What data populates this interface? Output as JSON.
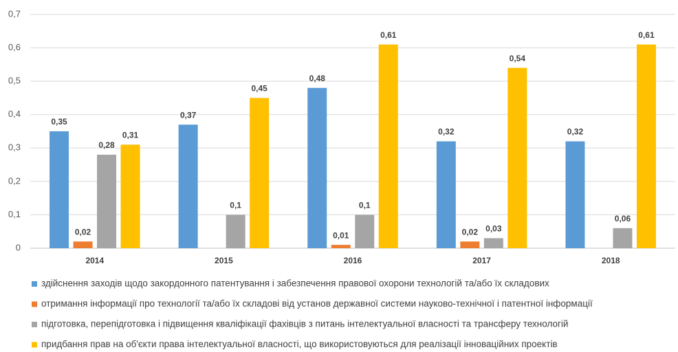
{
  "chart_data": {
    "type": "bar",
    "categories": [
      "2014",
      "2015",
      "2016",
      "2017",
      "2018"
    ],
    "series": [
      {
        "name": "здійснення заходів щодо закордонного патентування і забезпечення правової охорони технологій та/або їх складових",
        "color": "#5b9bd5",
        "values": [
          0.35,
          0.37,
          0.48,
          0.32,
          0.32
        ],
        "value_labels": [
          "0,35",
          "0,37",
          "0,48",
          "0,32",
          "0,32"
        ]
      },
      {
        "name": "отримання інформації про технології та/або їх складові від установ державної системи науково-технічної і патентної інформації",
        "color": "#ed7d31",
        "values": [
          0.02,
          null,
          0.01,
          0.02,
          null
        ],
        "value_labels": [
          "0,02",
          null,
          "0,01",
          "0,02",
          null
        ]
      },
      {
        "name": "підготовка, перепідготовка і підвищення кваліфікації фахівців з питань інтелектуальної власності та трансферу технологій",
        "color": "#a5a5a5",
        "values": [
          0.28,
          0.1,
          0.1,
          0.03,
          0.06
        ],
        "value_labels": [
          "0,28",
          "0,1",
          "0,1",
          "0,03",
          "0,06"
        ]
      },
      {
        "name": "придбання прав на об'єкти права інтелектуальної власності, що використовуються для реалізації інноваційних проектів",
        "color": "#ffc000",
        "values": [
          0.31,
          0.45,
          0.61,
          0.54,
          0.61
        ],
        "value_labels": [
          "0,31",
          "0,45",
          "0,61",
          "0,54",
          "0,61"
        ]
      }
    ],
    "ylim": [
      0,
      0.7
    ],
    "yticks": [
      {
        "value": 0,
        "label": "0"
      },
      {
        "value": 0.1,
        "label": "0,1"
      },
      {
        "value": 0.2,
        "label": "0,2"
      },
      {
        "value": 0.3,
        "label": "0,3"
      },
      {
        "value": 0.4,
        "label": "0,4"
      },
      {
        "value": 0.5,
        "label": "0,5"
      },
      {
        "value": 0.6,
        "label": "0,6"
      },
      {
        "value": 0.7,
        "label": "0,7"
      }
    ],
    "grid": true,
    "legend": "bottom"
  }
}
